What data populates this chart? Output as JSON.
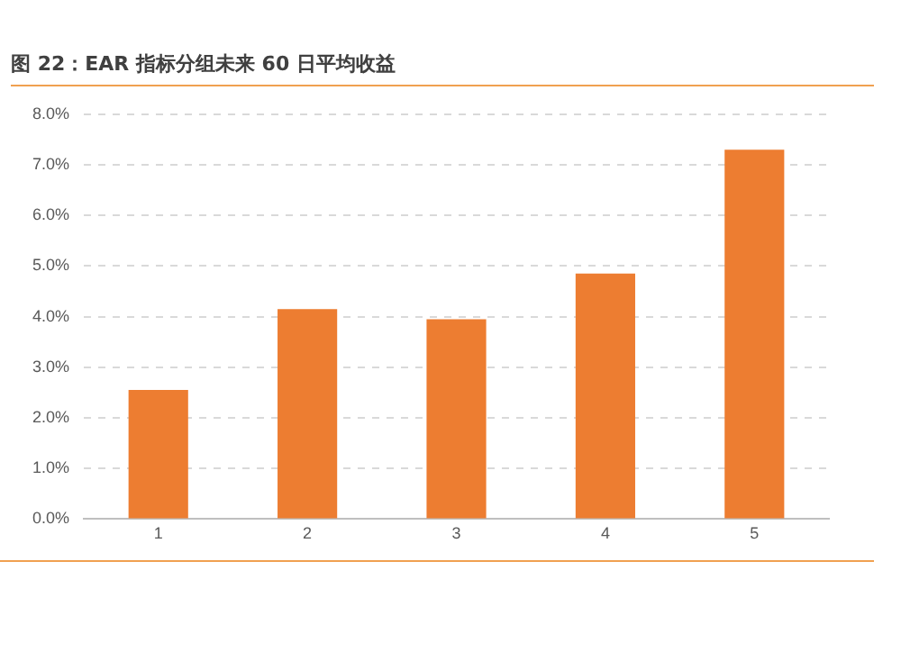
{
  "chart_data": {
    "type": "bar",
    "title": "图 22：EAR 指标分组未来 60 日平均收益",
    "categories": [
      "1",
      "2",
      "3",
      "4",
      "5"
    ],
    "values": [
      2.55,
      4.15,
      3.95,
      4.85,
      7.3
    ],
    "color": "#ed7d31",
    "ylim": [
      0,
      8
    ],
    "yticks": [
      {
        "value": 0,
        "label": "0.0%"
      },
      {
        "value": 1,
        "label": "1.0%"
      },
      {
        "value": 2,
        "label": "2.0%"
      },
      {
        "value": 3,
        "label": "3.0%"
      },
      {
        "value": 4,
        "label": "4.0%"
      },
      {
        "value": 5,
        "label": "5.0%"
      },
      {
        "value": 6,
        "label": "6.0%"
      },
      {
        "value": 7,
        "label": "7.0%"
      },
      {
        "value": 8,
        "label": "8.0%"
      }
    ],
    "grid": "y",
    "legend": false
  }
}
